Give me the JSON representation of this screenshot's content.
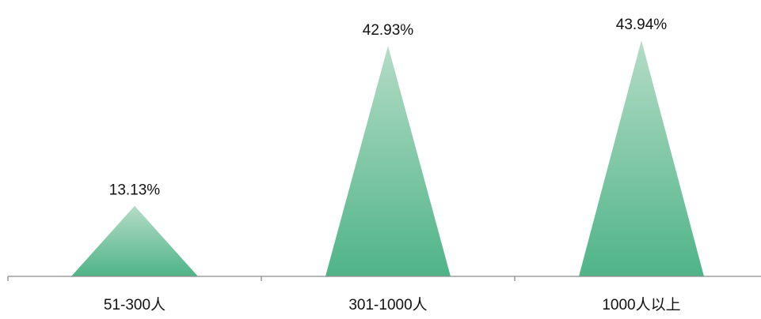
{
  "chart_data": {
    "type": "bar",
    "mark": "triangle",
    "categories": [
      "51-300人",
      "301-1000人",
      "1000人以上"
    ],
    "values": [
      13.13,
      42.93,
      43.94
    ],
    "value_labels": [
      "13.13%",
      "42.93%",
      "43.94%"
    ],
    "title": "",
    "xlabel": "",
    "ylabel": "",
    "ylim": [
      0,
      50
    ],
    "grid": false,
    "legend": "none",
    "colors": {
      "fill_top": "#b4dcc6",
      "fill_bottom": "#4fb487",
      "axis": "#8c8c8c"
    }
  }
}
